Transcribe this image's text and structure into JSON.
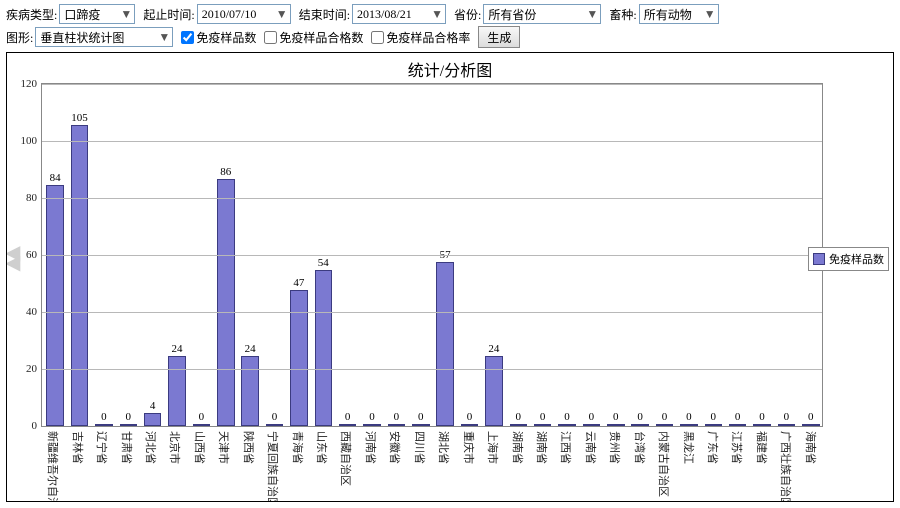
{
  "filters": {
    "disease_label": "疾病类型:",
    "disease_value": "口蹄疫",
    "start_label": "起止时间:",
    "start_value": "2010/07/10",
    "end_label": "结束时间:",
    "end_value": "2013/08/21",
    "province_label": "省份:",
    "province_value": "所有省份",
    "species_label": "畜种:",
    "species_value": "所有动物",
    "chart_type_label": "图形:",
    "chart_type_value": "垂直柱状统计图",
    "cb1_label": "免疫样品数",
    "cb1_checked": true,
    "cb2_label": "免疫样品合格数",
    "cb2_checked": false,
    "cb3_label": "免疫样品合格率",
    "cb3_checked": false,
    "generate_label": "生成"
  },
  "chart": {
    "type": "bar",
    "title": "统计/分析图",
    "title_fontsize": 16,
    "bar_color": "#7b79d1",
    "bar_border_color": "#3b3b80",
    "background_color": "#ffffff",
    "grid_color": "#b8b8b8",
    "ylim": [
      0,
      120
    ],
    "yticks": [
      0,
      20,
      40,
      60,
      80,
      100,
      120
    ],
    "label_fontsize": 11,
    "legend": {
      "label": "免疫样品数",
      "color": "#7b79d1"
    },
    "categories": [
      "新疆维吾尔自治区",
      "吉林省",
      "辽宁省",
      "甘肃省",
      "河北省",
      "北京市",
      "山西省",
      "天津市",
      "陕西省",
      "宁夏回族自治区",
      "青海省",
      "山东省",
      "西藏自治区",
      "河南省",
      "安徽省",
      "四川省",
      "湖北省",
      "重庆市",
      "上海市",
      "湖南省",
      "湖南省",
      "江西省",
      "云南省",
      "贵州省",
      "台湾省",
      "内蒙古自治区",
      "黑龙江",
      "广东省",
      "江苏省",
      "福建省",
      "广西壮族自治区",
      "海南省"
    ],
    "values": [
      84,
      105,
      0,
      0,
      4,
      24,
      0,
      86,
      24,
      0,
      47,
      54,
      0,
      0,
      0,
      0,
      57,
      0,
      24,
      0,
      0,
      0,
      0,
      0,
      0,
      0,
      0,
      0,
      0,
      0,
      0,
      0
    ]
  }
}
